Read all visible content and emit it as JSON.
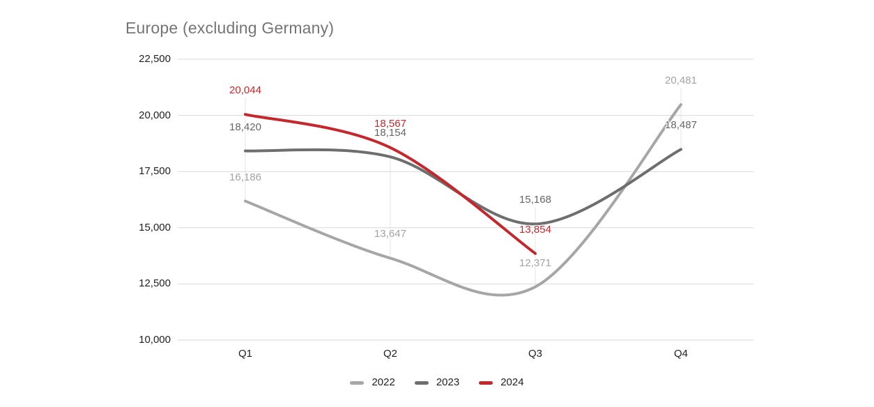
{
  "chart_data": {
    "type": "line",
    "title": "Europe (excluding Germany)",
    "categories": [
      "Q1",
      "Q2",
      "Q3",
      "Q4"
    ],
    "series": [
      {
        "name": "2022",
        "color": "#a6a6a6",
        "label_color": "#a3a3a3",
        "values": [
          16186,
          13647,
          12371,
          20481
        ],
        "labels": [
          "16,186",
          "13,647",
          "12,371",
          "20,481"
        ]
      },
      {
        "name": "2023",
        "color": "#6e6e6e",
        "label_color": "#666666",
        "values": [
          18420,
          18154,
          15168,
          18487
        ],
        "labels": [
          "18,420",
          "18,154",
          "15,168",
          "18,487"
        ]
      },
      {
        "name": "2024",
        "color": "#c4272c",
        "label_color": "#c4272c",
        "values": [
          20044,
          18567,
          13854
        ],
        "labels": [
          "20,044",
          "18,567",
          "13,854"
        ]
      }
    ],
    "y_axis": {
      "min": 10000,
      "max": 22500,
      "ticks": [
        {
          "value": 10000,
          "label": "10,000"
        },
        {
          "value": 12500,
          "label": "12,500"
        },
        {
          "value": 15000,
          "label": "15,000"
        },
        {
          "value": 17500,
          "label": "17,500"
        },
        {
          "value": 20000,
          "label": "20,000"
        },
        {
          "value": 22500,
          "label": "22,500"
        }
      ]
    },
    "legend": {
      "position": "bottom",
      "entries": [
        "2022",
        "2023",
        "2024"
      ]
    },
    "grid": {
      "horizontal": true,
      "vertical_stems": true
    },
    "curve": "smooth"
  },
  "colors": {
    "title_text": "#757575",
    "axis_text": "#1f1f1f",
    "gridline": "#d9d9d9",
    "stem": "#e4e4e4",
    "background": "#ffffff"
  }
}
